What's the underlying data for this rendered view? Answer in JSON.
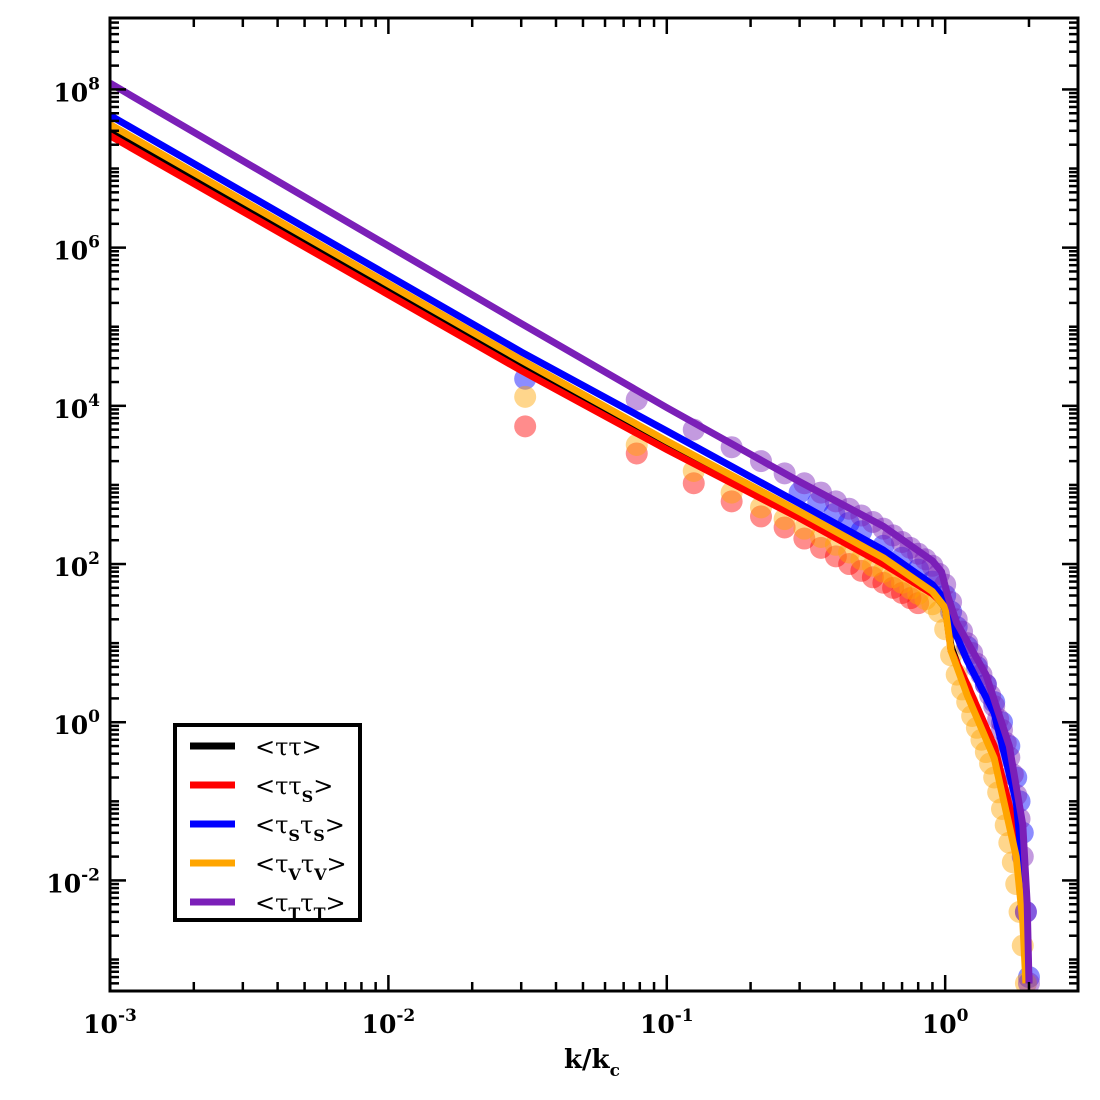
{
  "chart_data": {
    "type": "line",
    "xlabel": "k/k",
    "xlabel_sub": "c",
    "x_scale": "log",
    "y_scale": "log",
    "xlim": [
      0.001,
      3.0
    ],
    "ylim": [
      0.0004,
      800000000
    ],
    "grid": false,
    "legend_position": "lower-left",
    "x_ticks": [
      {
        "base": "10",
        "exp": "-3",
        "value": 0.001
      },
      {
        "base": "10",
        "exp": "-2",
        "value": 0.01
      },
      {
        "base": "10",
        "exp": "-1",
        "value": 0.1
      },
      {
        "base": "10",
        "exp": "0",
        "value": 1
      }
    ],
    "y_ticks": [
      {
        "base": "10",
        "exp": "-2",
        "value": 0.01
      },
      {
        "base": "10",
        "exp": "0",
        "value": 1
      },
      {
        "base": "10",
        "exp": "2",
        "value": 100
      },
      {
        "base": "10",
        "exp": "4",
        "value": 10000
      },
      {
        "base": "10",
        "exp": "6",
        "value": 1000000
      },
      {
        "base": "10",
        "exp": "8",
        "value": 100000000
      }
    ],
    "legend": [
      {
        "parts": [
          [
            "<ττ>",
            ""
          ]
        ],
        "color": "#000000"
      },
      {
        "parts": [
          [
            "<ττ",
            ""
          ],
          [
            "S",
            "sub"
          ],
          [
            ">",
            ""
          ]
        ],
        "color": "#ff0000"
      },
      {
        "parts": [
          [
            "<τ",
            ""
          ],
          [
            "S",
            "sub"
          ],
          [
            "τ",
            ""
          ],
          [
            "S",
            "sub"
          ],
          [
            ">",
            ""
          ]
        ],
        "color": "#0000ff"
      },
      {
        "parts": [
          [
            "<τ",
            ""
          ],
          [
            "V",
            "sub"
          ],
          [
            "τ",
            ""
          ],
          [
            "V",
            "sub"
          ],
          [
            ">",
            ""
          ]
        ],
        "color": "#ffa500"
      },
      {
        "parts": [
          [
            "<τ",
            ""
          ],
          [
            "T",
            "sub"
          ],
          [
            "τ",
            ""
          ],
          [
            "T",
            "sub"
          ],
          [
            ">",
            ""
          ]
        ],
        "color": "#7b1fb8"
      }
    ],
    "series": [
      {
        "color": "#000000",
        "line": {
          "x": [
            0.001,
            0.03,
            0.1,
            0.3,
            0.6,
            0.9,
            1.0,
            1.05,
            1.2,
            1.5,
            1.8,
            1.95,
            2.0
          ],
          "y": [
            31000000,
            35000,
            3200,
            420,
            110,
            45,
            28,
            9,
            2.5,
            0.4,
            0.03,
            0.002,
            0.0005
          ]
        },
        "points": {
          "x": [],
          "y": []
        }
      },
      {
        "color": "#ff0000",
        "line": {
          "x": [
            0.001,
            0.03,
            0.1,
            0.3,
            0.6,
            0.9,
            1.0,
            1.05,
            1.2,
            1.5,
            1.8,
            1.95,
            2.0
          ],
          "y": [
            26000000,
            28000,
            2800,
            380,
            100,
            42,
            30,
            8,
            3,
            0.5,
            0.04,
            0.002,
            0.0005
          ]
        },
        "points": {
          "x": [
            0.031,
            0.078,
            0.125,
            0.171,
            0.218,
            0.265,
            0.312,
            0.358,
            0.405,
            0.452,
            0.5,
            0.55,
            0.6,
            0.65,
            0.7,
            0.75,
            0.8
          ],
          "y": [
            5500,
            2500,
            1050,
            620,
            400,
            290,
            210,
            160,
            125,
            100,
            82,
            68,
            58,
            50,
            43,
            37,
            32
          ]
        }
      },
      {
        "color": "#0000ff",
        "line": {
          "x": [
            0.001,
            0.03,
            0.1,
            0.3,
            0.6,
            0.9,
            1.0,
            1.05,
            1.2,
            1.5,
            1.8,
            1.95,
            2.0
          ],
          "y": [
            47000000,
            48000,
            4800,
            580,
            150,
            55,
            35,
            18,
            6,
            1.3,
            0.1,
            0.005,
            0.0005
          ]
        },
        "points": {
          "x": [
            0.031,
            0.3,
            0.35,
            0.4,
            0.45,
            0.5,
            0.6,
            0.7,
            0.8,
            0.9,
            1.0,
            1.05,
            1.1,
            1.2,
            1.3,
            1.4,
            1.5,
            1.6,
            1.7,
            1.8,
            1.85,
            1.9,
            1.95,
            2.0
          ],
          "y": [
            22000,
            800,
            600,
            430,
            330,
            260,
            170,
            120,
            85,
            60,
            40,
            25,
            16,
            9,
            5,
            3,
            1.8,
            1.0,
            0.5,
            0.2,
            0.1,
            0.04,
            0.004,
            0.0006
          ]
        }
      },
      {
        "color": "#ffa500",
        "line": {
          "x": [
            0.001,
            0.03,
            0.1,
            0.3,
            0.6,
            0.9,
            1.0,
            1.05,
            1.2,
            1.5,
            1.8,
            1.9,
            1.95
          ],
          "y": [
            36000000,
            38000,
            3600,
            460,
            120,
            45,
            28,
            8,
            2.2,
            0.35,
            0.02,
            0.003,
            0.0005
          ]
        },
        "points": {
          "x": [
            0.031,
            0.078,
            0.125,
            0.171,
            0.218,
            0.265,
            0.312,
            0.358,
            0.405,
            0.452,
            0.5,
            0.55,
            0.6,
            0.65,
            0.7,
            0.75,
            0.8,
            0.85,
            0.9,
            0.95,
            1.0,
            1.05,
            1.1,
            1.15,
            1.2,
            1.25,
            1.3,
            1.35,
            1.4,
            1.45,
            1.5,
            1.55,
            1.6,
            1.65,
            1.7,
            1.75,
            1.8,
            1.85,
            1.9,
            1.95
          ],
          "y": [
            13000,
            3200,
            1500,
            800,
            520,
            370,
            280,
            220,
            175,
            140,
            115,
            95,
            80,
            68,
            58,
            49,
            42,
            36,
            31,
            25,
            15,
            7,
            4,
            2.6,
            1.8,
            1.2,
            0.85,
            0.6,
            0.42,
            0.3,
            0.2,
            0.13,
            0.08,
            0.05,
            0.03,
            0.017,
            0.009,
            0.004,
            0.0015,
            0.0005
          ]
        }
      },
      {
        "color": "#7b1fb8",
        "line": {
          "x": [
            0.001,
            0.03,
            0.1,
            0.3,
            0.6,
            0.9,
            0.97,
            1.02,
            1.1,
            1.4,
            1.7,
            1.9,
            1.97,
            2.0
          ],
          "y": [
            120000000,
            110000,
            9500,
            1100,
            300,
            110,
            80,
            40,
            18,
            4,
            0.5,
            0.05,
            0.005,
            0.0005
          ]
        },
        "points": {
          "x": [
            0.078,
            0.125,
            0.171,
            0.218,
            0.265,
            0.312,
            0.358,
            0.405,
            0.452,
            0.5,
            0.55,
            0.6,
            0.65,
            0.7,
            0.75,
            0.8,
            0.85,
            0.9,
            0.95,
            1.0,
            1.05,
            1.1,
            1.15,
            1.2,
            1.25,
            1.3,
            1.35,
            1.4,
            1.45,
            1.5,
            1.55,
            1.6,
            1.65,
            1.7,
            1.75,
            1.8,
            1.85,
            1.9,
            1.95,
            2.0
          ],
          "y": [
            12000,
            5000,
            3000,
            2000,
            1400,
            1050,
            800,
            620,
            500,
            410,
            340,
            280,
            230,
            190,
            160,
            135,
            115,
            95,
            75,
            55,
            33,
            20,
            14,
            10,
            7.5,
            5.5,
            4,
            3,
            2.2,
            1.6,
            1.1,
            0.8,
            0.55,
            0.36,
            0.22,
            0.12,
            0.06,
            0.02,
            0.004,
            0.0005
          ]
        }
      }
    ]
  }
}
